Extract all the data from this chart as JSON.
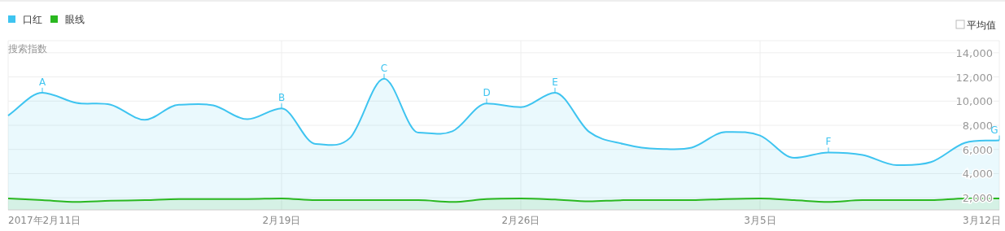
{
  "chart_data": {
    "type": "area",
    "ylabel": "搜索指数",
    "legend": "top left",
    "grid": true,
    "x": [
      "2017-02-11",
      "2017-02-12",
      "2017-02-13",
      "2017-02-14",
      "2017-02-15",
      "2017-02-16",
      "2017-02-17",
      "2017-02-18",
      "2017-02-19",
      "2017-02-20",
      "2017-02-21",
      "2017-02-22",
      "2017-02-23",
      "2017-02-24",
      "2017-02-25",
      "2017-02-26",
      "2017-02-27",
      "2017-02-28",
      "2017-03-01",
      "2017-03-02",
      "2017-03-03",
      "2017-03-04",
      "2017-03-05",
      "2017-03-06",
      "2017-03-07",
      "2017-03-08",
      "2017-03-09",
      "2017-03-10",
      "2017-03-11",
      "2017-03-12"
    ],
    "xlim": [
      "2017-02-11",
      "2017-03-12"
    ],
    "xticks": [
      {
        "value": "2017-02-11",
        "label": "2017年2月11日"
      },
      {
        "value": "2017-02-19",
        "label": "2月19日"
      },
      {
        "value": "2017-02-26",
        "label": "2月26日"
      },
      {
        "value": "2017-03-05",
        "label": "3月5日"
      },
      {
        "value": "2017-03-12",
        "label": "3月12日"
      }
    ],
    "ylim": [
      1000,
      15000
    ],
    "yticks": [
      {
        "value": 2000,
        "label": "2,000"
      },
      {
        "value": 4000,
        "label": "4,000"
      },
      {
        "value": 6000,
        "label": "6,000"
      },
      {
        "value": 8000,
        "label": "8,000"
      },
      {
        "value": 10000,
        "label": "10,000"
      },
      {
        "value": 12000,
        "label": "12,000"
      },
      {
        "value": 14000,
        "label": "14,000"
      }
    ],
    "series": [
      {
        "name": "口红",
        "color": "#3ec4f0",
        "values": [
          8800,
          10700,
          9850,
          9700,
          8450,
          9700,
          9650,
          8500,
          9400,
          6450,
          6950,
          11850,
          7400,
          7500,
          9800,
          9500,
          10700,
          7450,
          6450,
          6050,
          6150,
          7450,
          7150,
          5300,
          5750,
          5550,
          4700,
          4950,
          6550,
          6750
        ]
      },
      {
        "name": "眼线",
        "color": "#2ab820",
        "values": [
          1950,
          1800,
          1650,
          1750,
          1800,
          1900,
          1900,
          1900,
          1950,
          1800,
          1800,
          1800,
          1800,
          1650,
          1900,
          1950,
          1850,
          1700,
          1800,
          1800,
          1800,
          1900,
          1950,
          1800,
          1650,
          1800,
          1800,
          1800,
          1950,
          1950
        ]
      }
    ],
    "annotations": [
      {
        "text": "A",
        "x": "2017-02-12",
        "y": 10700
      },
      {
        "text": "B",
        "x": "2017-02-19",
        "y": 9400
      },
      {
        "text": "C",
        "x": "2017-02-22",
        "y": 11850
      },
      {
        "text": "D",
        "x": "2017-02-25",
        "y": 9800
      },
      {
        "text": "E",
        "x": "2017-02-27",
        "y": 10700
      },
      {
        "text": "F",
        "x": "2017-03-07",
        "y": 5750
      },
      {
        "text": "G",
        "x": "2017-03-12",
        "y": 6750
      },
      "平均值"
    ]
  }
}
